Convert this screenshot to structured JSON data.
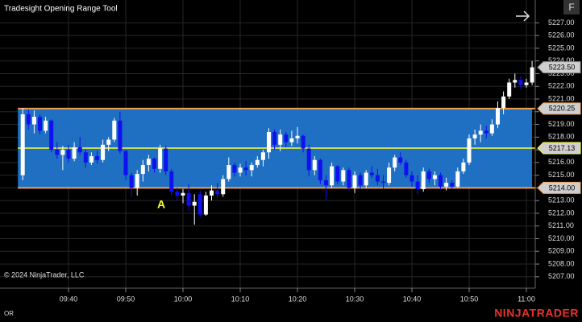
{
  "header": {
    "title": "Tradesight Opening Range Tool",
    "button": "F"
  },
  "footer": {
    "copyright": "© 2024 NinjaTrader, LLC",
    "indicator": "OR",
    "brand": "NINJATRADER"
  },
  "chart_data": {
    "type": "candlestick",
    "x": [
      "09:32",
      "09:33",
      "09:34",
      "09:35",
      "09:36",
      "09:37",
      "09:38",
      "09:39",
      "09:40",
      "09:41",
      "09:42",
      "09:43",
      "09:44",
      "09:45",
      "09:46",
      "09:47",
      "09:48",
      "09:49",
      "09:50",
      "09:51",
      "09:52",
      "09:53",
      "09:54",
      "09:55",
      "09:56",
      "09:57",
      "09:58",
      "09:59",
      "10:00",
      "10:01",
      "10:02",
      "10:03",
      "10:04",
      "10:05",
      "10:06",
      "10:07",
      "10:08",
      "10:09",
      "10:10",
      "10:11",
      "10:12",
      "10:13",
      "10:14",
      "10:15",
      "10:16",
      "10:17",
      "10:18",
      "10:19",
      "10:20",
      "10:21",
      "10:22",
      "10:23",
      "10:24",
      "10:25",
      "10:26",
      "10:27",
      "10:28",
      "10:29",
      "10:30",
      "10:31",
      "10:32",
      "10:33",
      "10:34",
      "10:35",
      "10:36",
      "10:37",
      "10:38",
      "10:39",
      "10:40",
      "10:41",
      "10:42",
      "10:43",
      "10:44",
      "10:45",
      "10:46",
      "10:47",
      "10:48",
      "10:49",
      "10:50",
      "10:51",
      "10:52",
      "10:53",
      "10:54",
      "10:55",
      "10:56",
      "10:57",
      "10:58",
      "10:59",
      "11:00",
      "11:01"
    ],
    "open": [
      5215.0,
      5219.8,
      5219.0,
      5219.6,
      5218.5,
      5219.3,
      5217.0,
      5216.6,
      5217.0,
      5216.3,
      5217.2,
      5216.8,
      5216.0,
      5216.5,
      5216.2,
      5217.4,
      5217.8,
      5219.3,
      5216.9,
      5215.0,
      5214.0,
      5215.1,
      5215.8,
      5216.3,
      5215.5,
      5217.1,
      5215.3,
      5213.7,
      5213.4,
      5213.6,
      5212.6,
      5213.5,
      5211.9,
      5213.4,
      5213.8,
      5213.5,
      5214.7,
      5215.8,
      5215.2,
      5215.6,
      5215.4,
      5215.8,
      5216.2,
      5216.8,
      5218.4,
      5217.4,
      5218.2,
      5217.6,
      5217.9,
      5218.1,
      5217.1,
      5215.4,
      5216.2,
      5214.6,
      5214.2,
      5215.7,
      5214.5,
      5215.4,
      5214.0,
      5215.0,
      5214.2,
      5215.2,
      5215.0,
      5214.5,
      5214.4,
      5215.6,
      5216.4,
      5216.0,
      5215.0,
      5214.5,
      5213.9,
      5215.3,
      5214.7,
      5215.0,
      5214.1,
      5214.4,
      5214.1,
      5215.3,
      5216.0,
      5217.9,
      5218.2,
      5218.5,
      5218.3,
      5219.0,
      5220.3,
      5221.2,
      5222.3,
      5222.5,
      5222.1,
      5222.3
    ],
    "high": [
      5220.3,
      5220.2,
      5220.1,
      5219.8,
      5219.6,
      5219.4,
      5217.6,
      5217.3,
      5217.4,
      5217.6,
      5218.0,
      5217.0,
      5216.8,
      5216.9,
      5217.8,
      5218.0,
      5219.5,
      5220.0,
      5217.0,
      5215.2,
      5215.4,
      5216.2,
      5216.6,
      5216.4,
      5217.4,
      5217.3,
      5215.5,
      5214.0,
      5213.9,
      5214.3,
      5213.5,
      5213.8,
      5213.7,
      5214.2,
      5214.4,
      5215.0,
      5216.4,
      5216.0,
      5215.9,
      5216.1,
      5216.0,
      5216.5,
      5217.0,
      5218.7,
      5218.6,
      5218.6,
      5218.4,
      5218.5,
      5218.8,
      5218.2,
      5217.4,
      5216.5,
      5216.3,
      5215.0,
      5216.0,
      5215.8,
      5215.6,
      5215.6,
      5215.3,
      5215.2,
      5215.4,
      5215.7,
      5215.5,
      5215.0,
      5216.0,
      5216.6,
      5216.8,
      5216.2,
      5215.3,
      5215.0,
      5215.6,
      5215.5,
      5215.3,
      5215.2,
      5214.8,
      5214.6,
      5215.6,
      5216.3,
      5218.2,
      5218.6,
      5219.0,
      5218.9,
      5219.4,
      5220.8,
      5221.6,
      5222.6,
      5223.0,
      5222.8,
      5222.6,
      5224.0
    ],
    "low": [
      5214.6,
      5218.6,
      5218.3,
      5218.2,
      5218.3,
      5216.8,
      5216.3,
      5215.4,
      5216.0,
      5216.1,
      5216.6,
      5215.6,
      5215.8,
      5215.9,
      5216.0,
      5216.9,
      5217.6,
      5216.7,
      5214.6,
      5213.3,
      5213.4,
      5214.5,
      5215.3,
      5215.2,
      5215.2,
      5215.0,
      5213.4,
      5213.0,
      5212.8,
      5212.2,
      5211.1,
      5211.7,
      5211.8,
      5213.0,
      5213.2,
      5213.3,
      5214.5,
      5214.9,
      5214.9,
      5215.0,
      5214.9,
      5215.6,
      5215.7,
      5216.3,
      5217.0,
      5216.9,
      5217.2,
      5217.3,
      5217.5,
      5216.8,
      5214.9,
      5215.0,
      5214.3,
      5213.0,
      5214.0,
      5214.3,
      5214.2,
      5213.8,
      5213.6,
      5213.9,
      5214.0,
      5214.8,
      5214.2,
      5213.9,
      5214.2,
      5215.3,
      5215.8,
      5214.8,
      5214.1,
      5213.5,
      5213.7,
      5214.4,
      5214.2,
      5213.9,
      5213.8,
      5213.9,
      5214.0,
      5215.1,
      5215.8,
      5217.4,
      5217.6,
      5217.9,
      5218.1,
      5218.7,
      5219.8,
      5221.0,
      5221.9,
      5221.8,
      5221.9,
      5222.1
    ],
    "close": [
      5219.8,
      5219.0,
      5219.6,
      5218.5,
      5219.3,
      5217.0,
      5216.6,
      5217.0,
      5216.3,
      5217.2,
      5216.8,
      5216.0,
      5216.5,
      5216.2,
      5217.4,
      5217.8,
      5219.3,
      5216.9,
      5215.0,
      5214.0,
      5215.1,
      5215.8,
      5216.3,
      5215.5,
      5217.1,
      5215.3,
      5213.7,
      5213.4,
      5213.6,
      5212.6,
      5212.9,
      5211.9,
      5213.4,
      5213.8,
      5213.5,
      5214.7,
      5215.8,
      5215.2,
      5215.6,
      5215.4,
      5215.8,
      5216.2,
      5216.8,
      5218.4,
      5217.4,
      5218.2,
      5217.6,
      5217.9,
      5218.1,
      5217.1,
      5215.4,
      5216.2,
      5214.6,
      5214.2,
      5215.7,
      5214.5,
      5215.4,
      5214.0,
      5215.0,
      5214.2,
      5215.2,
      5215.0,
      5214.5,
      5214.4,
      5215.6,
      5216.4,
      5216.0,
      5215.0,
      5214.5,
      5213.9,
      5215.3,
      5214.7,
      5215.0,
      5214.1,
      5214.4,
      5214.1,
      5215.3,
      5216.0,
      5217.9,
      5218.2,
      5218.5,
      5218.3,
      5219.0,
      5220.3,
      5221.2,
      5222.3,
      5222.5,
      5222.1,
      5222.3,
      5223.5
    ],
    "up_color": "#ffffff",
    "down_color": "#1010f0",
    "xticks": [
      "09:40",
      "09:50",
      "10:00",
      "10:10",
      "10:20",
      "10:30",
      "10:40",
      "10:50",
      "11:00"
    ],
    "ylim": [
      5206.1,
      5228.8
    ],
    "yticks": [
      {
        "value": 5207,
        "label": "5207.00"
      },
      {
        "value": 5208,
        "label": "5208.00"
      },
      {
        "value": 5209,
        "label": "5209.00"
      },
      {
        "value": 5210,
        "label": "5210.00"
      },
      {
        "value": 5211,
        "label": "5211.00"
      },
      {
        "value": 5212,
        "label": "5212.00"
      },
      {
        "value": 5213,
        "label": "5213.00"
      },
      {
        "value": 5214,
        "label": "5214.00"
      },
      {
        "value": 5215,
        "label": "5215.00"
      },
      {
        "value": 5216,
        "label": "5216.00"
      },
      {
        "value": 5217,
        "label": "5217.00"
      },
      {
        "value": 5218,
        "label": "5218.00"
      },
      {
        "value": 5219,
        "label": "5219.00"
      },
      {
        "value": 5220,
        "label": "5220.00"
      },
      {
        "value": 5221,
        "label": "5221.00"
      },
      {
        "value": 5222,
        "label": "5222.00"
      },
      {
        "value": 5223,
        "label": "5223.00"
      },
      {
        "value": 5224,
        "label": "5224.00"
      },
      {
        "value": 5225,
        "label": "5225.00"
      },
      {
        "value": 5226,
        "label": "5226.00"
      },
      {
        "value": 5227,
        "label": "5227.00"
      }
    ],
    "grid": true,
    "opening_range": {
      "color": "#1f6fc2",
      "edge_color": "#f0a050",
      "mid_color": "#ffff33",
      "high": {
        "value": 5220.25,
        "label": "5220.25"
      },
      "mid": {
        "value": 5217.13,
        "label": "5217.13"
      },
      "low": {
        "value": 5214.0,
        "label": "5214.00"
      }
    },
    "last_price": {
      "value": 5223.5,
      "label": "5223.50"
    },
    "annotation": "A"
  }
}
